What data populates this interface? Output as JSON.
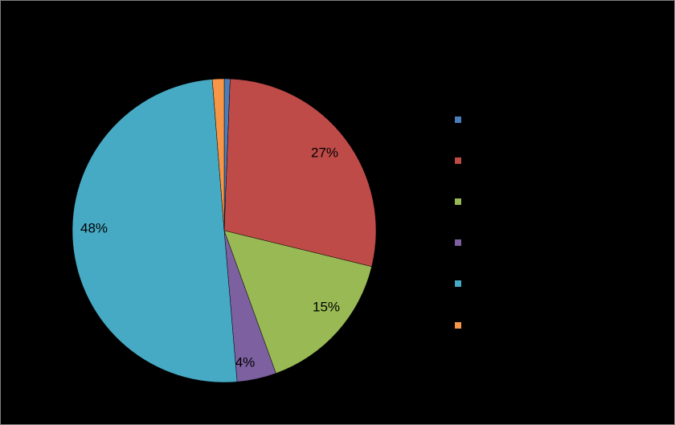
{
  "chart_data": {
    "type": "pie",
    "values": [
      0.6,
      27,
      15,
      4,
      48,
      1.2
    ],
    "labels_shown": [
      "",
      "27%",
      "15%",
      "4%",
      "48%",
      ""
    ],
    "colors": [
      "#4a7ebb",
      "#be4b48",
      "#98b954",
      "#7d60a0",
      "#46aac5",
      "#f79646"
    ],
    "legend": {
      "position": "right",
      "entries": [
        "",
        "",
        "",
        "",
        "",
        ""
      ]
    }
  }
}
